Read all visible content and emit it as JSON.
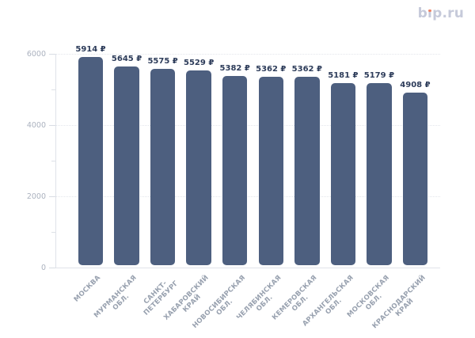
{
  "logo": {
    "text": "bip.ru",
    "part1": "b",
    "part2": "ı",
    "part3": "p.ru",
    "color": "#c6cada",
    "dot_color": "#ef8365"
  },
  "chart_data": {
    "type": "bar",
    "title": "",
    "xlabel": "",
    "ylabel": "",
    "categories": [
      "МОСКВА",
      "МУРМАНСКАЯ\nОБЛ.",
      "САНКТ-\nПЕТЕРБУРГ",
      "ХАБАРОВСКИЙ\nКРАЙ",
      "НОВОСИБИРСКАЯ\nОБЛ.",
      "ЧЕЛЯБИНСКАЯ\nОБЛ.",
      "КЕМЕРОВСКАЯ\nОБЛ.",
      "АРХАНГЕЛЬСКАЯ\nОБЛ.",
      "МОСКОВСКАЯ\nОБЛ.",
      "КРАСНОДАРСКИЙ\nКРАЙ"
    ],
    "values": [
      5914,
      5645,
      5575,
      5529,
      5382,
      5362,
      5362,
      5181,
      5179,
      4908
    ],
    "currency_suffix": "₽",
    "ylim": [
      0,
      6000
    ],
    "yticks": [
      0,
      2000,
      4000,
      6000
    ],
    "yticks_minor": [
      1000,
      3000,
      5000
    ],
    "grid": "horizontal-dotted",
    "legend": "none",
    "colors": {
      "bar": "#4d5f7f",
      "value_label": "#2d3c5a",
      "x_tick_label": "#98a1af",
      "y_tick_label": "#abb2bf",
      "gridline": "#e3e6ec",
      "axis": "#e0e3e9"
    }
  }
}
